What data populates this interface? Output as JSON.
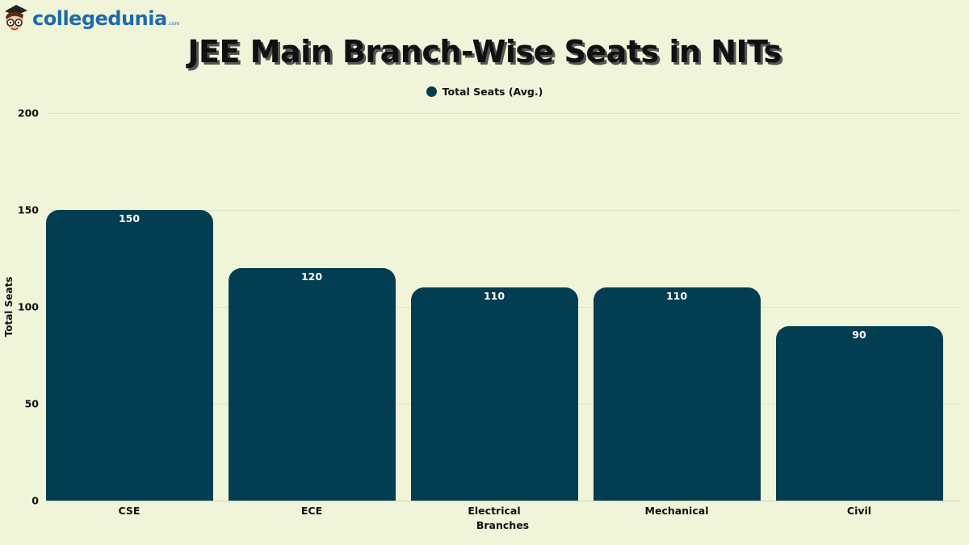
{
  "brand": {
    "name": "collegedunia",
    "suffix": ".com"
  },
  "colors": {
    "background": "#f0f4d8",
    "bar": "#033d52",
    "brand": "#1f6aa8"
  },
  "chart_data": {
    "type": "bar",
    "title": "JEE Main Branch-Wise Seats in NITs",
    "categories": [
      "CSE",
      "ECE",
      "Electrical",
      "Mechanical",
      "Civil"
    ],
    "series": [
      {
        "name": "Total Seats (Avg.)",
        "values": [
          150,
          120,
          110,
          110,
          90
        ]
      }
    ],
    "xlabel": "Branches",
    "ylabel": "Total Seats",
    "ylim": [
      0,
      200
    ],
    "yticks": [
      0,
      50,
      100,
      150,
      200
    ],
    "grid": true,
    "legend_position": "top-center",
    "data_labels": [
      "150",
      "120",
      "110",
      "110",
      "90"
    ]
  }
}
